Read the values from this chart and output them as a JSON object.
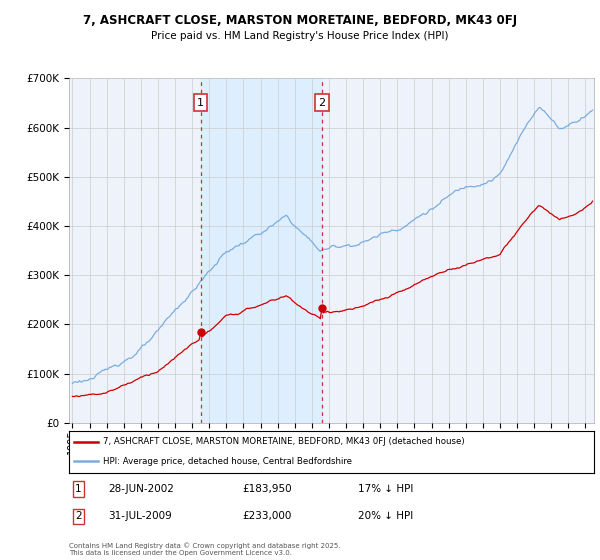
{
  "title1": "7, ASHCRAFT CLOSE, MARSTON MORETAINE, BEDFORD, MK43 0FJ",
  "title2": "Price paid vs. HM Land Registry's House Price Index (HPI)",
  "legend_red": "7, ASHCRAFT CLOSE, MARSTON MORETAINE, BEDFORD, MK43 0FJ (detached house)",
  "legend_blue": "HPI: Average price, detached house, Central Bedfordshire",
  "footnote": "Contains HM Land Registry data © Crown copyright and database right 2025.\nThis data is licensed under the Open Government Licence v3.0.",
  "marker1_date": "28-JUN-2002",
  "marker1_price": 183950,
  "marker1_hpi": "17% ↓ HPI",
  "marker1_year": 2002.49,
  "marker2_date": "31-JUL-2009",
  "marker2_price": 233000,
  "marker2_hpi": "20% ↓ HPI",
  "marker2_year": 2009.58,
  "ylim": [
    0,
    700000
  ],
  "xlim_start": 1994.8,
  "xlim_end": 2025.5,
  "red_color": "#cc0000",
  "blue_color": "#7aadde",
  "shade_color": "#ddeeff",
  "bg_color": "#eef3fb",
  "grid_color": "#cccccc",
  "marker_box_color": "#cc3333",
  "dashed_line_color": "#cc3333",
  "white": "#ffffff"
}
